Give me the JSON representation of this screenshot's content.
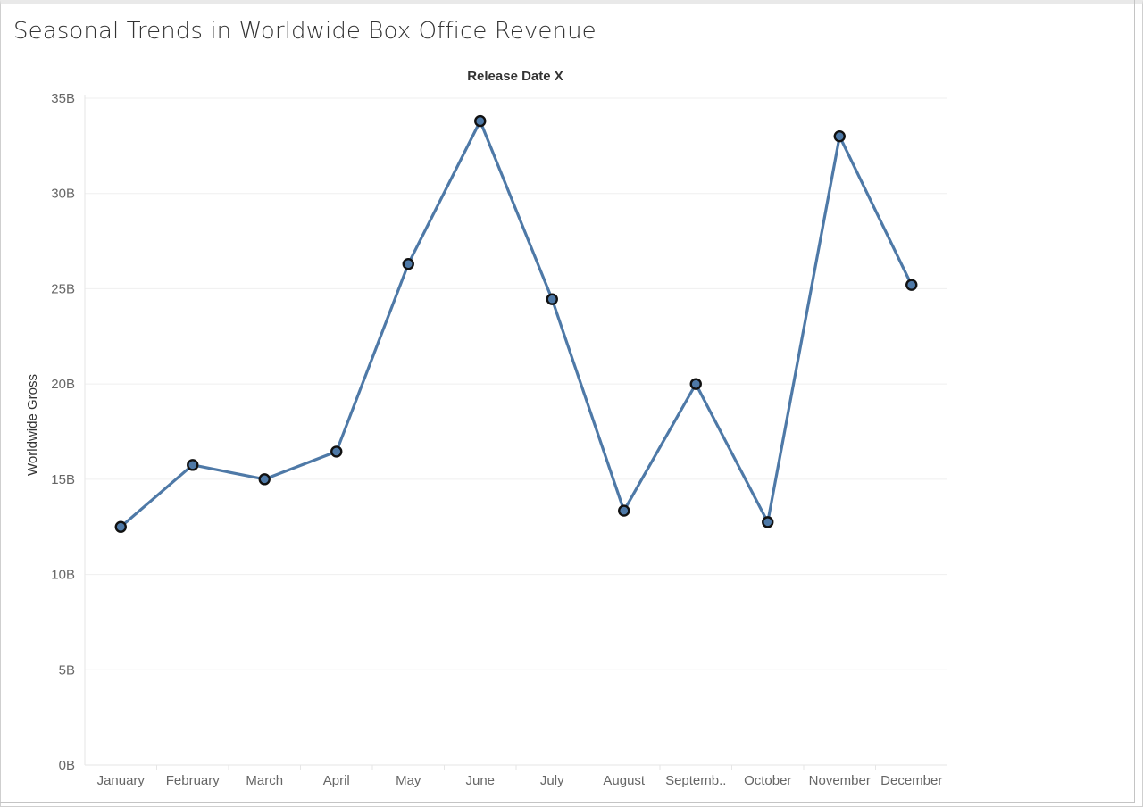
{
  "chart_data": {
    "type": "line",
    "title": "Seasonal Trends in Worldwide Box Office Revenue",
    "column_header": "Release Date X",
    "xlabel": "",
    "ylabel": "Worldwide Gross",
    "categories": [
      "January",
      "February",
      "March",
      "April",
      "May",
      "June",
      "July",
      "August",
      "Septemb..",
      "October",
      "November",
      "December"
    ],
    "values": [
      12.5,
      15.75,
      15.0,
      16.45,
      26.3,
      33.8,
      24.45,
      13.35,
      20.0,
      12.75,
      33.0,
      25.2
    ],
    "value_unit": "B",
    "ylim": [
      0,
      35
    ],
    "yticks": [
      0,
      5,
      10,
      15,
      20,
      25,
      30,
      35
    ],
    "ytick_labels": [
      "0B",
      "5B",
      "10B",
      "15B",
      "20B",
      "25B",
      "30B",
      "35B"
    ],
    "grid": true,
    "legend": "none",
    "line_color": "#4e79a7",
    "marker_color": "#4e79a7",
    "marker_edge_color": "#111111",
    "gridline_color": "#efefef"
  }
}
